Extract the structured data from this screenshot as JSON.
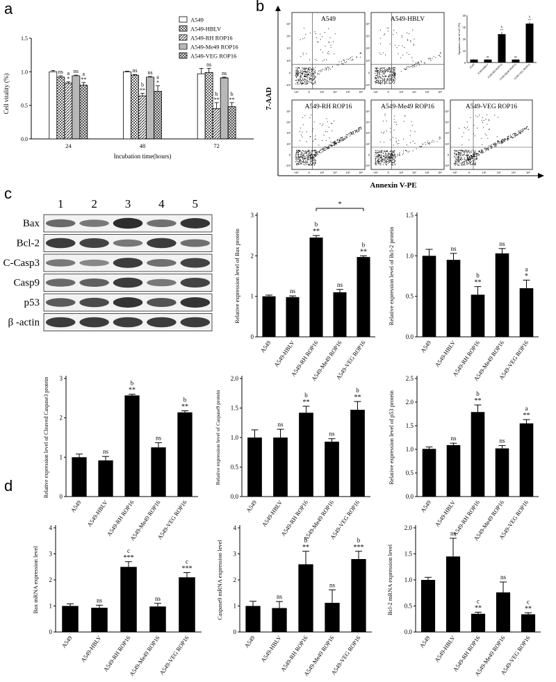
{
  "panel_labels": [
    "a",
    "b",
    "c",
    "d"
  ],
  "colors": {
    "bar": "#000000",
    "axis": "#000000",
    "blot_bg": "#f2f2f2",
    "band": "#1e1e1e"
  },
  "groups": [
    "A549",
    "A549-HBLV",
    "A549-RH ROP16",
    "A549-Me49 ROP16",
    "A549-VEG ROP16"
  ],
  "panel_a": {
    "legend": [
      "A549",
      "A549-HBLV",
      "A549-RH ROP16",
      "A549-Me49 ROP16",
      "A549-VEG ROP16"
    ],
    "xlabel": "Incubation time(hours)",
    "ylabel": "Cell vitality (%)"
  },
  "panel_b": {
    "plots": [
      "A549",
      "A549-HBLV",
      "A549-RH ROP16",
      "A549-Me49 ROP16",
      "A549-VEG ROP16"
    ],
    "ylabel": "7-AAD",
    "xlabel": "Annexin V-PE",
    "y_ticks": [
      "10⁵",
      "10⁴",
      "10³",
      "10²",
      "0",
      "-10²"
    ],
    "x_ticks": [
      "-10²",
      "0",
      "10²",
      "10³",
      "10⁴",
      "10⁵"
    ],
    "inset_ylabel": "Apoptosis rate of cell (%)"
  },
  "blot": {
    "lanes": [
      "1",
      "2",
      "3",
      "4",
      "5"
    ],
    "rows": [
      {
        "name": "Bax",
        "intensity": [
          0.55,
          0.45,
          0.95,
          0.5,
          0.9
        ]
      },
      {
        "name": "Bcl-2",
        "intensity": [
          0.85,
          0.8,
          0.45,
          0.85,
          0.5
        ]
      },
      {
        "name": "C-Casp3",
        "intensity": [
          0.45,
          0.35,
          0.85,
          0.5,
          0.8
        ]
      },
      {
        "name": "Casp9",
        "intensity": [
          0.55,
          0.6,
          0.85,
          0.45,
          0.8
        ]
      },
      {
        "name": "p53",
        "intensity": [
          0.65,
          0.75,
          0.9,
          0.7,
          0.9
        ]
      },
      {
        "name": "β -actin",
        "intensity": [
          0.85,
          0.85,
          0.85,
          0.85,
          0.85
        ]
      }
    ]
  },
  "chart_data": [
    {
      "type": "bar",
      "id": "a",
      "categories": [
        "24",
        "48",
        "72"
      ],
      "series": [
        {
          "name": "A549",
          "values": [
            1.0,
            1.0,
            0.97
          ],
          "errors": [
            0.02,
            0.01,
            0.08
          ]
        },
        {
          "name": "A549-HBLV",
          "values": [
            0.92,
            0.95,
            0.99
          ],
          "errors": [
            0.02,
            0.01,
            0.06
          ]
        },
        {
          "name": "A549-RH ROP16",
          "values": [
            0.83,
            0.64,
            0.45
          ],
          "errors": [
            0.02,
            0.04,
            0.09
          ]
        },
        {
          "name": "A549-Me49 ROP16",
          "values": [
            0.94,
            0.92,
            0.91
          ],
          "errors": [
            0.01,
            0.01,
            0.01
          ]
        },
        {
          "name": "A549-VEG ROP16",
          "values": [
            0.8,
            0.71,
            0.48
          ],
          "errors": [
            0.04,
            0.08,
            0.06
          ]
        }
      ],
      "annotations": [
        [
          "",
          "ns",
          "a",
          "ns",
          "a"
        ],
        [
          "",
          "ns",
          "b",
          "ns",
          "a"
        ],
        [
          "",
          "ns",
          "b",
          "ns",
          "b"
        ]
      ],
      "stars": [
        [
          "",
          "",
          "*",
          "",
          "**"
        ],
        [
          "",
          "",
          "**",
          "",
          "*"
        ],
        [
          "",
          "",
          "**",
          "",
          "**"
        ]
      ],
      "ylim": [
        0,
        1.5
      ],
      "yticks": [
        "0.0",
        "0.5",
        "1.0",
        "1.5"
      ],
      "xlabel": "Incubation time(hours)",
      "ylabel": "Cell vitality (%)"
    },
    {
      "type": "bar",
      "id": "b-inset",
      "categories": [
        "A549",
        "A549-HBLV",
        "A549-RH ROP16",
        "A549-Me49 ROP16",
        "A549-VEG ROP16"
      ],
      "values": [
        2.5,
        2.5,
        24,
        2.5,
        33
      ],
      "errors": [
        0.5,
        0.5,
        2,
        0.5,
        1.5
      ],
      "annotations": [
        "",
        "ns",
        "b",
        "ns",
        "b"
      ],
      "stars": [
        "",
        "",
        "**",
        "",
        "**"
      ],
      "ylim": [
        0,
        40
      ],
      "yticks": [
        "0",
        "10",
        "20",
        "30",
        "40"
      ],
      "ylabel": "Apoptosis rate of cell (%)"
    },
    {
      "type": "bar",
      "id": "c-bax",
      "categories": [
        "A549",
        "A549-HBLV",
        "A549-RH ROP16",
        "A549-Me49 ROP16",
        "A549-VEG ROP16"
      ],
      "values": [
        1.0,
        0.98,
        2.45,
        1.1,
        1.97
      ],
      "errors": [
        0.03,
        0.03,
        0.05,
        0.07,
        0.03
      ],
      "annotations": [
        "",
        "ns",
        "b",
        "ns",
        "b"
      ],
      "stars": [
        "",
        "",
        "**",
        "",
        "**"
      ],
      "bracket": {
        "from": 2,
        "to": 4,
        "label": "*"
      },
      "ylim": [
        0,
        3
      ],
      "yticks": [
        "0",
        "1",
        "2",
        "3"
      ],
      "ylabel": "Relative expression level of Bax protein"
    },
    {
      "type": "bar",
      "id": "c-bcl2",
      "categories": [
        "A549",
        "A549-HBLV",
        "A549-RH ROP16",
        "A549-Me49 ROP16",
        "A549-VEG ROP16"
      ],
      "values": [
        1.0,
        0.95,
        0.52,
        1.03,
        0.6
      ],
      "errors": [
        0.08,
        0.08,
        0.1,
        0.06,
        0.1
      ],
      "annotations": [
        "",
        "ns",
        "b",
        "ns",
        "a"
      ],
      "stars": [
        "",
        "",
        "**",
        "",
        "*"
      ],
      "ylim": [
        0,
        1.5
      ],
      "yticks": [
        "0.0",
        "0.5",
        "1.0",
        "1.5"
      ],
      "ylabel": "Relative expression level of Bcl-2 protein"
    },
    {
      "type": "bar",
      "id": "c-casp3",
      "categories": [
        "A549",
        "A549-HBLV",
        "A549-RH ROP16",
        "A549-Me49 ROP16",
        "A549-VEG ROP16"
      ],
      "values": [
        1.0,
        0.92,
        2.57,
        1.25,
        2.14
      ],
      "errors": [
        0.08,
        0.1,
        0.03,
        0.12,
        0.04
      ],
      "annotations": [
        "",
        "ns",
        "b",
        "ns",
        "b"
      ],
      "stars": [
        "",
        "",
        "**",
        "",
        "**"
      ],
      "ylim": [
        0,
        3
      ],
      "yticks": [
        "0",
        "1",
        "2",
        "3"
      ],
      "ylabel": "Relative expression level of Cleaved Caspase3 protein"
    },
    {
      "type": "bar",
      "id": "c-casp9",
      "categories": [
        "A549",
        "A549-HBLV",
        "A549-RH ROP16",
        "A549-Me49 ROP16",
        "A549-VEG ROP16"
      ],
      "values": [
        1.0,
        1.0,
        1.42,
        0.93,
        1.47
      ],
      "errors": [
        0.13,
        0.14,
        0.11,
        0.05,
        0.14
      ],
      "annotations": [
        "",
        "ns",
        "b",
        "ns",
        "b"
      ],
      "stars": [
        "",
        "",
        "**",
        "",
        "**"
      ],
      "ylim": [
        0,
        2.0
      ],
      "yticks": [
        "0.0",
        "0.5",
        "1.0",
        "1.5",
        "2.0"
      ],
      "ylabel": "Relative expression level of Caspase9 protein"
    },
    {
      "type": "bar",
      "id": "c-p53",
      "categories": [
        "A549",
        "A549-HBLV",
        "A549-RH ROP16",
        "A549-Me49 ROP16",
        "A549-VEG ROP16"
      ],
      "values": [
        1.01,
        1.09,
        1.79,
        1.02,
        1.55
      ],
      "errors": [
        0.04,
        0.04,
        0.15,
        0.06,
        0.08
      ],
      "annotations": [
        "",
        "ns",
        "b",
        "ns",
        "a"
      ],
      "stars": [
        "",
        "",
        "**",
        "",
        "**"
      ],
      "ylim": [
        0,
        2.5
      ],
      "yticks": [
        "0.0",
        "0.5",
        "1.0",
        "1.5",
        "2.0",
        "2.5"
      ],
      "ylabel": "Relative expression level of p53 protein"
    },
    {
      "type": "bar",
      "id": "d-bax",
      "categories": [
        "A549",
        "A549-HBLV",
        "A549-RH ROP16",
        "A549-Me49 ROP16",
        "A549-VEG ROP16"
      ],
      "values": [
        1.0,
        0.93,
        2.5,
        0.98,
        2.1
      ],
      "errors": [
        0.08,
        0.1,
        0.2,
        0.12,
        0.18
      ],
      "annotations": [
        "",
        "ns",
        "c",
        "ns",
        "c"
      ],
      "stars": [
        "",
        "",
        "***",
        "",
        "***"
      ],
      "ylim": [
        0,
        4
      ],
      "yticks": [
        "0",
        "1",
        "2",
        "3",
        "4"
      ],
      "ylabel": "Bax mRNA expression level"
    },
    {
      "type": "bar",
      "id": "d-casp9",
      "categories": [
        "A549",
        "A549-HBLV",
        "A549-RH ROP16",
        "A549-Me49 ROP16",
        "A549-VEG ROP16"
      ],
      "values": [
        1.0,
        0.92,
        2.6,
        1.12,
        2.8
      ],
      "errors": [
        0.18,
        0.25,
        0.5,
        0.5,
        0.3
      ],
      "annotations": [
        "",
        "ns",
        "b",
        "ns",
        "b"
      ],
      "stars": [
        "",
        "",
        "**",
        "",
        "***"
      ],
      "ylim": [
        0,
        4
      ],
      "yticks": [
        "0",
        "1",
        "2",
        "3",
        "4"
      ],
      "ylabel": "Caspase9 mRNA expression level"
    },
    {
      "type": "bar",
      "id": "d-bcl2",
      "categories": [
        "A549",
        "A549-HBLV",
        "A549-RH ROP16",
        "A549-Me49 ROP16",
        "A549-VEG ROP16"
      ],
      "values": [
        1.0,
        1.45,
        0.35,
        0.76,
        0.34
      ],
      "errors": [
        0.05,
        0.35,
        0.03,
        0.2,
        0.03
      ],
      "annotations": [
        "",
        "ns",
        "c",
        "ns",
        "c"
      ],
      "stars": [
        "",
        "",
        "**",
        "",
        "**"
      ],
      "ylim": [
        0,
        2.0
      ],
      "yticks": [
        "0.0",
        "0.5",
        "1.0",
        "1.5",
        "2.0"
      ],
      "ylabel": "Bcl-2 mRNA expression level"
    }
  ]
}
